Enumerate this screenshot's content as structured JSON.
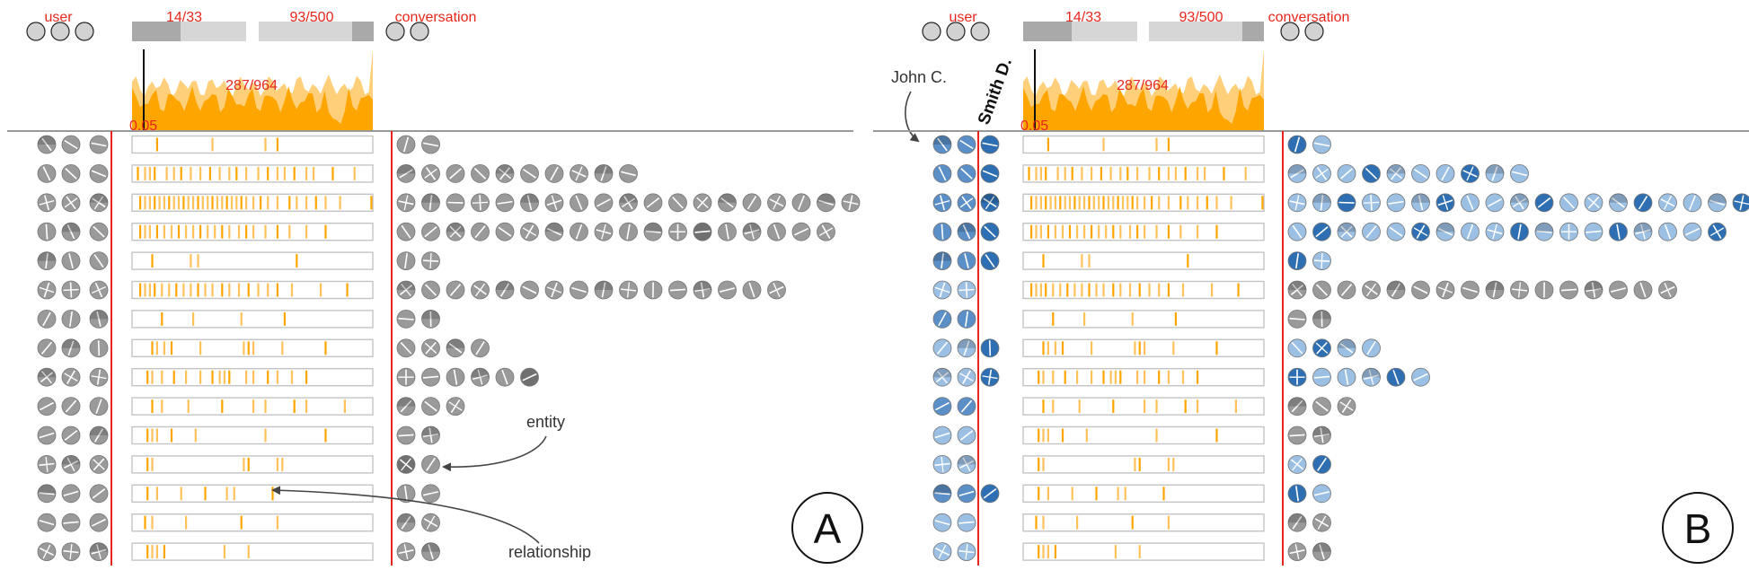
{
  "colors": {
    "red": "#e8261c",
    "orange": "#ffa500",
    "orange_light": "#ffcf7a",
    "gray_glyph": "#9a9a9a",
    "blue": "#2d6fb2",
    "blue_light": "#9cc0e4"
  },
  "panels": [
    {
      "id": "A",
      "letter": "A",
      "user_label": "user",
      "conversation_label": "conversation",
      "user_slider": "14/33",
      "conv_slider": "93/500",
      "histogram_label": "287/964",
      "threshold_label": "0.05",
      "rows": [
        {
          "users": 3,
          "ticks": [
            0.1,
            0.33,
            0.55,
            0.6
          ],
          "entities": 2
        },
        {
          "users": 3,
          "ticks": [
            0.02,
            0.05,
            0.07,
            0.09,
            0.14,
            0.17,
            0.2,
            0.24,
            0.28,
            0.32,
            0.36,
            0.4,
            0.43,
            0.47,
            0.52,
            0.56,
            0.6,
            0.63,
            0.67,
            0.72,
            0.75,
            0.83,
            0.92
          ],
          "entities": 10
        },
        {
          "users": 3,
          "ticks": [
            0.03,
            0.05,
            0.07,
            0.09,
            0.11,
            0.13,
            0.15,
            0.17,
            0.19,
            0.21,
            0.23,
            0.25,
            0.27,
            0.29,
            0.31,
            0.33,
            0.35,
            0.37,
            0.39,
            0.41,
            0.43,
            0.45,
            0.47,
            0.5,
            0.53,
            0.56,
            0.6,
            0.65,
            0.68,
            0.72,
            0.76,
            0.8,
            0.86,
            0.99
          ],
          "entities": 19
        },
        {
          "users": 3,
          "ticks": [
            0.03,
            0.05,
            0.07,
            0.1,
            0.13,
            0.16,
            0.19,
            0.22,
            0.25,
            0.28,
            0.31,
            0.34,
            0.37,
            0.4,
            0.44,
            0.47,
            0.5,
            0.55,
            0.6,
            0.65,
            0.72,
            0.8
          ],
          "entities": 18
        },
        {
          "users": 3,
          "ticks": [
            0.08,
            0.24,
            0.27,
            0.68
          ],
          "entities": 2
        },
        {
          "users": 3,
          "ticks": [
            0.03,
            0.05,
            0.07,
            0.09,
            0.12,
            0.15,
            0.18,
            0.21,
            0.24,
            0.27,
            0.3,
            0.33,
            0.37,
            0.4,
            0.44,
            0.48,
            0.52,
            0.56,
            0.6,
            0.66,
            0.78,
            0.89
          ],
          "entities": 16
        },
        {
          "users": 3,
          "ticks": [
            0.12,
            0.25,
            0.45,
            0.63
          ],
          "entities": 2
        },
        {
          "users": 3,
          "ticks": [
            0.08,
            0.1,
            0.13,
            0.16,
            0.28,
            0.46,
            0.48,
            0.5,
            0.62,
            0.8
          ],
          "entities": 4
        },
        {
          "users": 3,
          "ticks": [
            0.06,
            0.08,
            0.12,
            0.17,
            0.22,
            0.28,
            0.33,
            0.36,
            0.38,
            0.4,
            0.47,
            0.5,
            0.56,
            0.6,
            0.66,
            0.72
          ],
          "entities": 6
        },
        {
          "users": 3,
          "ticks": [
            0.08,
            0.12,
            0.23,
            0.37,
            0.5,
            0.55,
            0.67,
            0.72,
            0.88
          ],
          "entities": 3
        },
        {
          "users": 3,
          "ticks": [
            0.06,
            0.08,
            0.1,
            0.16,
            0.26,
            0.55,
            0.8
          ],
          "entities": 2
        },
        {
          "users": 3,
          "ticks": [
            0.06,
            0.08,
            0.46,
            0.48,
            0.6,
            0.62
          ],
          "entities": 2
        },
        {
          "users": 3,
          "ticks": [
            0.06,
            0.1,
            0.2,
            0.3,
            0.39,
            0.42,
            0.58
          ],
          "entities": 2
        },
        {
          "users": 3,
          "ticks": [
            0.05,
            0.08,
            0.22,
            0.45,
            0.6
          ],
          "entities": 2
        },
        {
          "users": 3,
          "ticks": [
            0.06,
            0.08,
            0.1,
            0.13,
            0.38,
            0.48
          ],
          "entities": 2
        }
      ],
      "annotations": {
        "entity": "entity",
        "relationship": "relationship"
      }
    },
    {
      "id": "B",
      "letter": "B",
      "user_label": "user",
      "conversation_label": "conversation",
      "user_slider": "14/33",
      "conv_slider": "93/500",
      "histogram_label": "287/964",
      "threshold_label": "0.05",
      "rotated_label": "Smith D.",
      "callout_label": "John C.",
      "rows": [
        {
          "users": 3,
          "ticks": [
            0.1,
            0.33,
            0.55,
            0.6
          ],
          "entities": 2
        },
        {
          "users": 3,
          "ticks": [
            0.02,
            0.05,
            0.07,
            0.09,
            0.14,
            0.17,
            0.2,
            0.24,
            0.28,
            0.32,
            0.36,
            0.4,
            0.43,
            0.47,
            0.52,
            0.56,
            0.6,
            0.63,
            0.67,
            0.72,
            0.75,
            0.83,
            0.92
          ],
          "entities": 10
        },
        {
          "users": 3,
          "ticks": [
            0.03,
            0.05,
            0.07,
            0.09,
            0.11,
            0.13,
            0.15,
            0.17,
            0.19,
            0.21,
            0.23,
            0.25,
            0.27,
            0.29,
            0.31,
            0.33,
            0.35,
            0.37,
            0.39,
            0.41,
            0.43,
            0.45,
            0.47,
            0.5,
            0.53,
            0.56,
            0.6,
            0.65,
            0.68,
            0.72,
            0.76,
            0.8,
            0.86,
            0.99
          ],
          "entities": 19
        },
        {
          "users": 3,
          "ticks": [
            0.03,
            0.05,
            0.07,
            0.1,
            0.13,
            0.16,
            0.19,
            0.22,
            0.25,
            0.28,
            0.31,
            0.34,
            0.37,
            0.4,
            0.44,
            0.47,
            0.5,
            0.55,
            0.6,
            0.65,
            0.72,
            0.8
          ],
          "entities": 18
        },
        {
          "users": 3,
          "ticks": [
            0.08,
            0.24,
            0.27,
            0.68
          ],
          "entities": 2
        },
        {
          "users": 3,
          "ticks": [
            0.03,
            0.05,
            0.07,
            0.09,
            0.12,
            0.15,
            0.18,
            0.21,
            0.24,
            0.27,
            0.3,
            0.33,
            0.37,
            0.4,
            0.44,
            0.48,
            0.52,
            0.56,
            0.6,
            0.66,
            0.78,
            0.89
          ],
          "entities": 16
        },
        {
          "users": 3,
          "ticks": [
            0.12,
            0.25,
            0.45,
            0.63
          ],
          "entities": 2
        },
        {
          "users": 3,
          "ticks": [
            0.08,
            0.1,
            0.13,
            0.16,
            0.28,
            0.46,
            0.48,
            0.5,
            0.62,
            0.8
          ],
          "entities": 4
        },
        {
          "users": 3,
          "ticks": [
            0.06,
            0.08,
            0.12,
            0.17,
            0.22,
            0.28,
            0.33,
            0.36,
            0.38,
            0.4,
            0.47,
            0.5,
            0.56,
            0.6,
            0.66,
            0.72
          ],
          "entities": 6
        },
        {
          "users": 3,
          "ticks": [
            0.08,
            0.12,
            0.23,
            0.37,
            0.5,
            0.55,
            0.67,
            0.72,
            0.88
          ],
          "entities": 3
        },
        {
          "users": 3,
          "ticks": [
            0.06,
            0.08,
            0.1,
            0.16,
            0.26,
            0.55,
            0.8
          ],
          "entities": 2
        },
        {
          "users": 3,
          "ticks": [
            0.06,
            0.08,
            0.46,
            0.48,
            0.6,
            0.62
          ],
          "entities": 2
        },
        {
          "users": 3,
          "ticks": [
            0.06,
            0.1,
            0.2,
            0.3,
            0.39,
            0.42,
            0.58
          ],
          "entities": 2
        },
        {
          "users": 3,
          "ticks": [
            0.05,
            0.08,
            0.22,
            0.45,
            0.6
          ],
          "entities": 2
        },
        {
          "users": 3,
          "ticks": [
            0.06,
            0.08,
            0.1,
            0.13,
            0.38,
            0.48
          ],
          "entities": 2
        }
      ]
    }
  ]
}
